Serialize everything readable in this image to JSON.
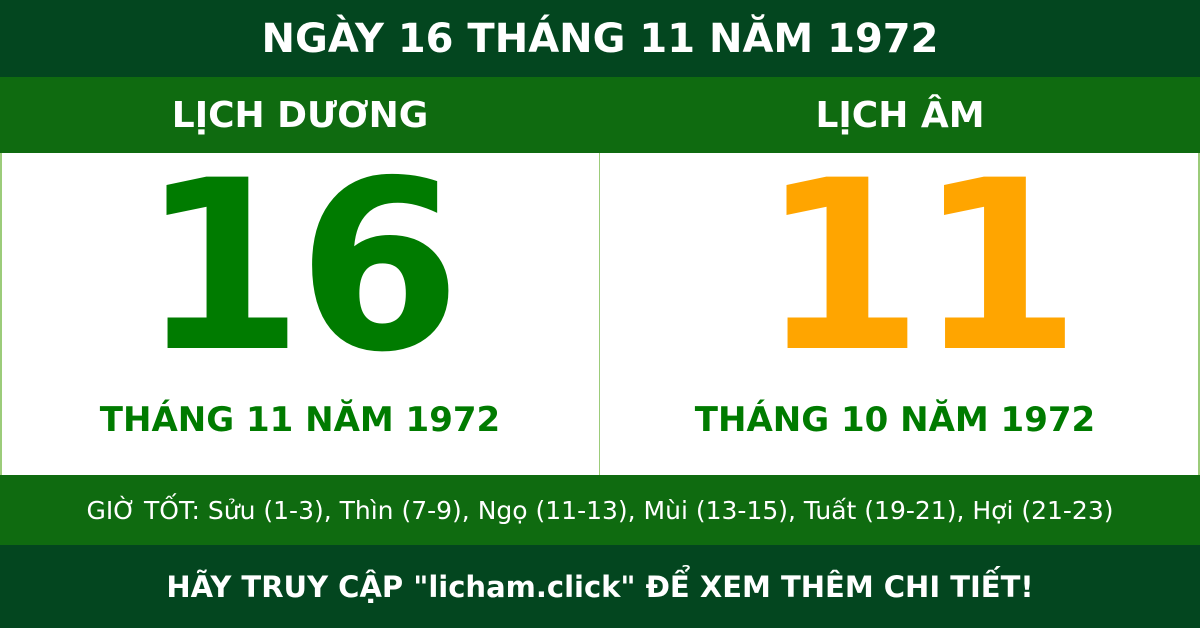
{
  "title": "NGÀY 16 THÁNG 11 NĂM 1972",
  "solar": {
    "label": "LỊCH DƯƠNG",
    "day": "16",
    "month_year": "THÁNG 11 NĂM 1972"
  },
  "lunar": {
    "label": "LỊCH ÂM",
    "day": "11",
    "month_year": "THÁNG 10 NĂM 1972"
  },
  "good_hours": "GIỜ TỐT: Sửu (1-3), Thìn (7-9), Ngọ (11-13), Mùi (13-15), Tuất (19-21), Hợi (21-23)",
  "footer": "HÃY TRUY CẬP \"licham.click\" ĐỂ XEM THÊM CHI TIẾT!",
  "colors": {
    "dark_green": "#03461f",
    "green": "#0f6b10",
    "solar_day": "#007b00",
    "lunar_day": "#ffa500"
  }
}
